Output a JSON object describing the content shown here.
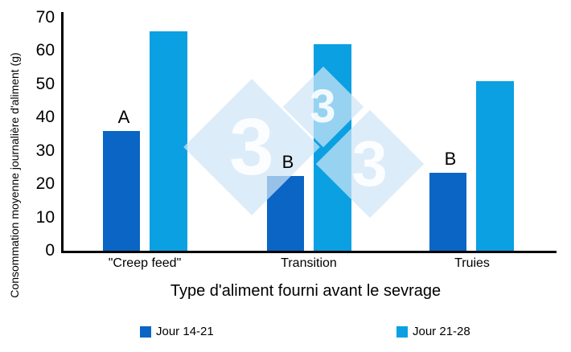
{
  "chart_data": {
    "type": "bar",
    "categories": [
      "\"Creep feed\"",
      "Transition",
      "Truies"
    ],
    "series": [
      {
        "name": "Jour 14-21",
        "color": "#0a65c5",
        "values": [
          36,
          22.5,
          23.5
        ]
      },
      {
        "name": "Jour 21-28",
        "color": "#0aa0e2",
        "values": [
          66,
          62,
          51
        ]
      }
    ],
    "bar_annotations": [
      {
        "category_index": 0,
        "series_index": 0,
        "label": "A"
      },
      {
        "category_index": 1,
        "series_index": 0,
        "label": "B"
      },
      {
        "category_index": 2,
        "series_index": 0,
        "label": "B"
      }
    ],
    "title": "",
    "xlabel": "Type d'aliment fourni avant le sevrage",
    "ylabel": "Consommation moyenne journalière d'aliment (g)",
    "ylim": [
      0,
      70
    ],
    "yticks": [
      70,
      60,
      50,
      40,
      30,
      20,
      10,
      0
    ],
    "grid": false,
    "legend_position": "bottom"
  },
  "watermark": {
    "digit": "3",
    "count": 3,
    "diamond_color": "rgba(206,228,246,0.72)",
    "digit_color": "rgba(255,255,255,0.88)"
  },
  "colors": {
    "axis": "#000000",
    "text": "#000000",
    "background": "#ffffff"
  }
}
